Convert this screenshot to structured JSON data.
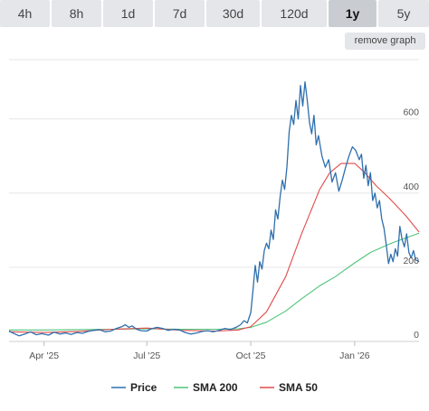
{
  "range_tabs": [
    {
      "label": "4h",
      "active": false
    },
    {
      "label": "8h",
      "active": false
    },
    {
      "label": "1d",
      "active": false
    },
    {
      "label": "7d",
      "active": false
    },
    {
      "label": "30d",
      "active": false
    },
    {
      "label": "120d",
      "active": false
    },
    {
      "label": "1y",
      "active": true
    },
    {
      "label": "5y",
      "active": false
    }
  ],
  "remove_graph_label": "remove graph",
  "chart_data": {
    "type": "line",
    "title": "",
    "xlabel": "",
    "ylabel": "",
    "ylim": [
      0,
      760
    ],
    "xlim": [
      "2025-03-01",
      "2026-02-27"
    ],
    "y_ticks": [
      0,
      200,
      400,
      600
    ],
    "y_tick_labels": [
      "0",
      "200",
      "400",
      "600"
    ],
    "x_ticks": [
      "2025-04-01",
      "2025-07-01",
      "2025-10-01",
      "2026-01-01"
    ],
    "x_tick_labels": [
      "Apr '25",
      "Jul '25",
      "Oct '25",
      "Jan '26"
    ],
    "grid": true,
    "legend_position": "bottom",
    "colors": {
      "Price": "#2f6fad",
      "SMA 200": "#4fc47a",
      "SMA 50": "#e14b4b"
    },
    "series": [
      {
        "name": "Price",
        "points": [
          [
            "2025-03-01",
            28
          ],
          [
            "2025-03-05",
            22
          ],
          [
            "2025-03-10",
            15
          ],
          [
            "2025-03-15",
            20
          ],
          [
            "2025-03-20",
            26
          ],
          [
            "2025-03-25",
            18
          ],
          [
            "2025-03-30",
            21
          ],
          [
            "2025-04-05",
            17
          ],
          [
            "2025-04-10",
            25
          ],
          [
            "2025-04-15",
            20
          ],
          [
            "2025-04-20",
            23
          ],
          [
            "2025-04-25",
            19
          ],
          [
            "2025-04-30",
            24
          ],
          [
            "2025-05-05",
            22
          ],
          [
            "2025-05-10",
            27
          ],
          [
            "2025-05-15",
            30
          ],
          [
            "2025-05-20",
            32
          ],
          [
            "2025-05-25",
            26
          ],
          [
            "2025-05-30",
            28
          ],
          [
            "2025-06-04",
            35
          ],
          [
            "2025-06-09",
            40
          ],
          [
            "2025-06-12",
            45
          ],
          [
            "2025-06-15",
            38
          ],
          [
            "2025-06-18",
            42
          ],
          [
            "2025-06-22",
            33
          ],
          [
            "2025-06-26",
            29
          ],
          [
            "2025-07-01",
            28
          ],
          [
            "2025-07-05",
            34
          ],
          [
            "2025-07-10",
            38
          ],
          [
            "2025-07-15",
            35
          ],
          [
            "2025-07-20",
            30
          ],
          [
            "2025-07-25",
            33
          ],
          [
            "2025-07-30",
            31
          ],
          [
            "2025-08-04",
            24
          ],
          [
            "2025-08-09",
            20
          ],
          [
            "2025-08-14",
            23
          ],
          [
            "2025-08-19",
            27
          ],
          [
            "2025-08-24",
            29
          ],
          [
            "2025-08-29",
            26
          ],
          [
            "2025-09-03",
            30
          ],
          [
            "2025-09-08",
            35
          ],
          [
            "2025-09-13",
            32
          ],
          [
            "2025-09-18",
            38
          ],
          [
            "2025-09-22",
            45
          ],
          [
            "2025-09-25",
            56
          ],
          [
            "2025-09-28",
            50
          ],
          [
            "2025-10-01",
            78
          ],
          [
            "2025-10-03",
            140
          ],
          [
            "2025-10-05",
            205
          ],
          [
            "2025-10-07",
            160
          ],
          [
            "2025-10-09",
            215
          ],
          [
            "2025-10-11",
            195
          ],
          [
            "2025-10-13",
            245
          ],
          [
            "2025-10-15",
            265
          ],
          [
            "2025-10-17",
            250
          ],
          [
            "2025-10-19",
            300
          ],
          [
            "2025-10-21",
            275
          ],
          [
            "2025-10-23",
            355
          ],
          [
            "2025-10-25",
            330
          ],
          [
            "2025-10-27",
            390
          ],
          [
            "2025-10-29",
            435
          ],
          [
            "2025-10-31",
            410
          ],
          [
            "2025-11-02",
            470
          ],
          [
            "2025-11-04",
            565
          ],
          [
            "2025-11-06",
            610
          ],
          [
            "2025-11-08",
            585
          ],
          [
            "2025-11-10",
            650
          ],
          [
            "2025-11-12",
            600
          ],
          [
            "2025-11-14",
            690
          ],
          [
            "2025-11-16",
            635
          ],
          [
            "2025-11-18",
            700
          ],
          [
            "2025-11-20",
            650
          ],
          [
            "2025-11-22",
            590
          ],
          [
            "2025-11-24",
            560
          ],
          [
            "2025-11-26",
            610
          ],
          [
            "2025-11-28",
            530
          ],
          [
            "2025-11-30",
            555
          ],
          [
            "2025-12-03",
            500
          ],
          [
            "2025-12-06",
            470
          ],
          [
            "2025-12-09",
            490
          ],
          [
            "2025-12-12",
            430
          ],
          [
            "2025-12-15",
            455
          ],
          [
            "2025-12-18",
            405
          ],
          [
            "2025-12-21",
            435
          ],
          [
            "2025-12-24",
            470
          ],
          [
            "2025-12-27",
            500
          ],
          [
            "2025-12-30",
            525
          ],
          [
            "2026-01-02",
            515
          ],
          [
            "2026-01-05",
            490
          ],
          [
            "2026-01-07",
            505
          ],
          [
            "2026-01-09",
            440
          ],
          [
            "2026-01-11",
            475
          ],
          [
            "2026-01-13",
            420
          ],
          [
            "2026-01-15",
            455
          ],
          [
            "2026-01-17",
            380
          ],
          [
            "2026-01-19",
            400
          ],
          [
            "2026-01-21",
            360
          ],
          [
            "2026-01-23",
            380
          ],
          [
            "2026-01-25",
            330
          ],
          [
            "2026-01-27",
            305
          ],
          [
            "2026-01-29",
            260
          ],
          [
            "2026-01-31",
            210
          ],
          [
            "2026-02-02",
            235
          ],
          [
            "2026-02-04",
            215
          ],
          [
            "2026-02-06",
            250
          ],
          [
            "2026-02-08",
            230
          ],
          [
            "2026-02-10",
            310
          ],
          [
            "2026-02-12",
            275
          ],
          [
            "2026-02-14",
            255
          ],
          [
            "2026-02-16",
            290
          ],
          [
            "2026-02-18",
            240
          ],
          [
            "2026-02-20",
            225
          ],
          [
            "2026-02-22",
            245
          ],
          [
            "2026-02-24",
            220
          ],
          [
            "2026-02-27",
            215
          ]
        ]
      },
      {
        "name": "SMA 200",
        "points": [
          [
            "2025-03-01",
            31
          ],
          [
            "2025-04-01",
            31
          ],
          [
            "2025-05-01",
            32
          ],
          [
            "2025-06-01",
            33
          ],
          [
            "2025-07-01",
            34
          ],
          [
            "2025-08-01",
            33
          ],
          [
            "2025-09-01",
            33
          ],
          [
            "2025-09-20",
            34
          ],
          [
            "2025-10-01",
            38
          ],
          [
            "2025-10-15",
            52
          ],
          [
            "2025-11-01",
            82
          ],
          [
            "2025-11-15",
            115
          ],
          [
            "2025-12-01",
            150
          ],
          [
            "2025-12-15",
            175
          ],
          [
            "2026-01-01",
            212
          ],
          [
            "2026-01-15",
            240
          ],
          [
            "2026-02-01",
            263
          ],
          [
            "2026-02-15",
            279
          ],
          [
            "2026-02-27",
            292
          ]
        ]
      },
      {
        "name": "SMA 50",
        "points": [
          [
            "2025-03-01",
            26
          ],
          [
            "2025-04-01",
            24
          ],
          [
            "2025-05-01",
            27
          ],
          [
            "2025-06-01",
            33
          ],
          [
            "2025-07-01",
            36
          ],
          [
            "2025-08-01",
            30
          ],
          [
            "2025-09-01",
            28
          ],
          [
            "2025-09-20",
            31
          ],
          [
            "2025-10-01",
            40
          ],
          [
            "2025-10-15",
            80
          ],
          [
            "2025-11-01",
            175
          ],
          [
            "2025-11-15",
            290
          ],
          [
            "2025-12-01",
            410
          ],
          [
            "2025-12-10",
            455
          ],
          [
            "2025-12-20",
            480
          ],
          [
            "2026-01-01",
            480
          ],
          [
            "2026-01-10",
            455
          ],
          [
            "2026-01-20",
            420
          ],
          [
            "2026-02-01",
            385
          ],
          [
            "2026-02-15",
            340
          ],
          [
            "2026-02-27",
            295
          ]
        ]
      }
    ]
  }
}
